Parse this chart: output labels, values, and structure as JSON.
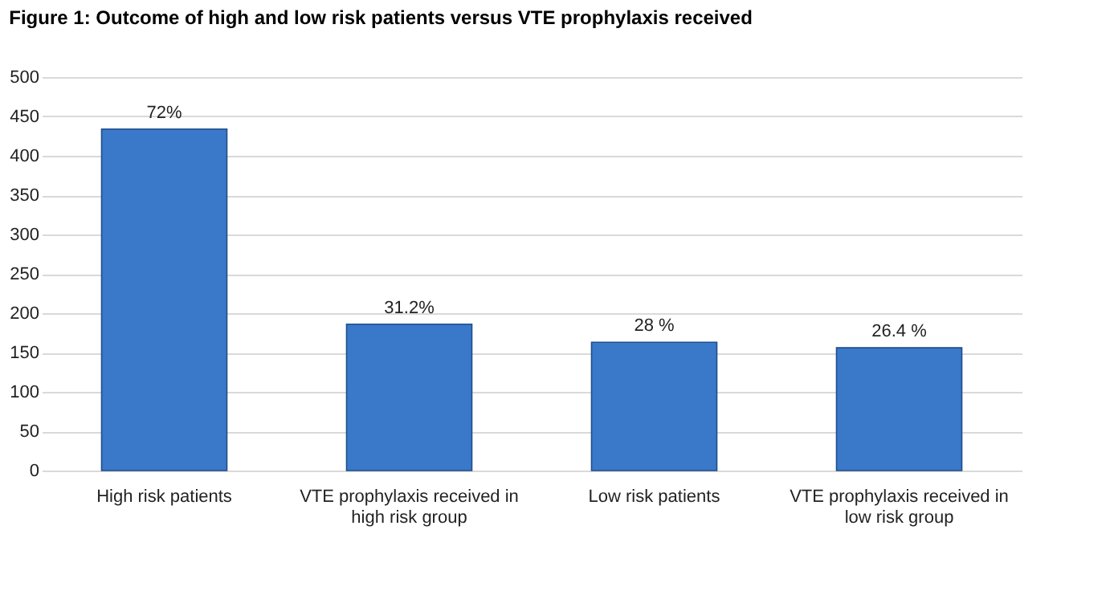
{
  "chart_data": {
    "type": "bar",
    "title": "Figure 1:          Outcome of high and low risk patients versus VTE prophylaxis received",
    "categories": [
      "High risk patients",
      "VTE prophylaxis received in high risk group",
      "Low risk patients",
      "VTE prophylaxis received in low risk group"
    ],
    "values": [
      434,
      186,
      163,
      156
    ],
    "annotations": [
      {
        "text": "72%",
        "x": "High risk patients",
        "y": 434
      },
      {
        "text": "31.2%",
        "x": "VTE prophylaxis received in high risk group",
        "y": 186
      },
      {
        "text": "28 %",
        "x": "Low risk patients",
        "y": 163
      },
      {
        "text": "26.4 %",
        "x": "VTE prophylaxis received in low risk group",
        "y": 156
      }
    ],
    "color": "#3a78c9",
    "ylim": [
      0,
      500
    ],
    "yticks": [
      0,
      50,
      100,
      150,
      200,
      250,
      300,
      350,
      400,
      450,
      500
    ],
    "grid": "y",
    "legend": false
  }
}
